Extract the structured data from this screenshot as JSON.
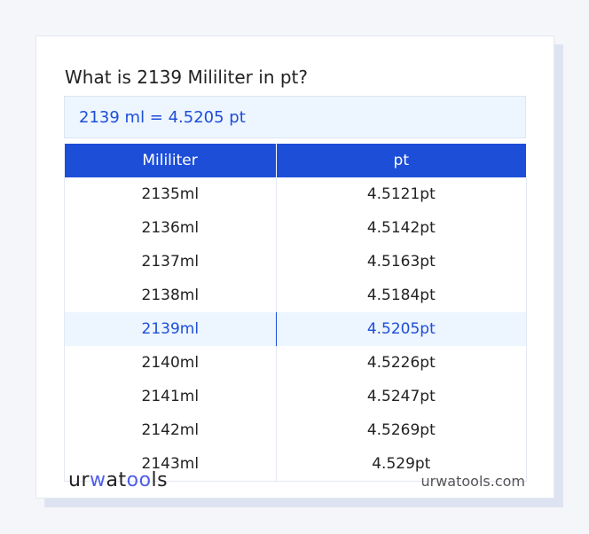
{
  "title": "What is 2139 Mililiter in pt?",
  "result": "2139 ml = 4.5205 pt",
  "table": {
    "headers": [
      "Mililiter",
      "pt"
    ],
    "rows": [
      [
        "2135ml",
        "4.5121pt"
      ],
      [
        "2136ml",
        "4.5142pt"
      ],
      [
        "2137ml",
        "4.5163pt"
      ],
      [
        "2138ml",
        "4.5184pt"
      ],
      [
        "2139ml",
        "4.5205pt"
      ],
      [
        "2140ml",
        "4.5226pt"
      ],
      [
        "2141ml",
        "4.5247pt"
      ],
      [
        "2142ml",
        "4.5269pt"
      ],
      [
        "2143ml",
        "4.529pt"
      ]
    ],
    "highlight_index": 4
  },
  "footer": {
    "logo": "urwatools",
    "site": "urwatools.com"
  },
  "colors": {
    "accent": "#1d4ed8",
    "highlight_bg": "#edf5fe"
  }
}
